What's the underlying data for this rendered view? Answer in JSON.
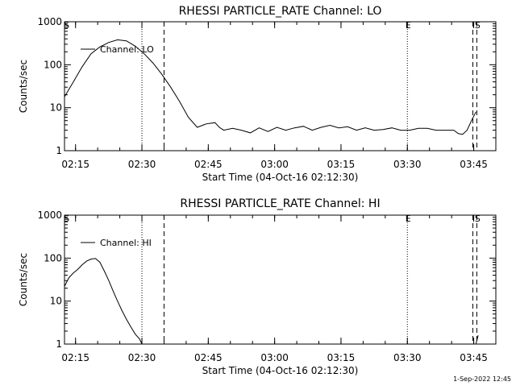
{
  "footer": {
    "timestamp": "1-Sep-2022 12:45"
  },
  "chart_data": [
    {
      "type": "line",
      "title": "RHESSI PARTICLE_RATE Channel: LO",
      "xlabel": "Start Time (04-Oct-16 02:12:30)",
      "ylabel": "Counts/sec",
      "ylim": [
        1,
        1000
      ],
      "yscale": "log",
      "x_unit": "minutes after 02:12:30",
      "xlim": [
        0,
        97.5
      ],
      "x_ticks": [
        "02:15",
        "02:30",
        "02:45",
        "03:00",
        "03:15",
        "03:30",
        "03:45"
      ],
      "y_ticks": [
        "1",
        "10",
        "100",
        "1000"
      ],
      "legend": "top-left",
      "grid": false,
      "series": [
        {
          "name": "Channel: LO",
          "x": [
            0,
            2,
            4,
            6,
            8,
            10,
            12,
            14,
            16,
            18,
            20,
            22,
            24,
            26,
            28,
            30,
            32,
            34,
            35,
            36,
            38,
            40,
            42,
            44,
            46,
            48,
            50,
            52,
            54,
            56,
            58,
            60,
            62,
            64,
            66,
            68,
            70,
            72,
            74,
            76,
            78,
            80,
            82,
            84,
            86,
            88,
            89,
            90,
            91,
            92,
            93
          ],
          "y": [
            18,
            40,
            90,
            180,
            260,
            330,
            380,
            360,
            270,
            180,
            110,
            60,
            30,
            14,
            6,
            3.5,
            4.2,
            4.5,
            3.5,
            3,
            3.3,
            3,
            2.6,
            3.4,
            2.8,
            3.5,
            3,
            3.4,
            3.7,
            3,
            3.5,
            3.9,
            3.4,
            3.6,
            3,
            3.4,
            3,
            3.1,
            3.4,
            3,
            3,
            3.3,
            3.3,
            3,
            3,
            3,
            2.5,
            2.4,
            3,
            5,
            8
          ]
        }
      ],
      "markers": [
        {
          "label": "S",
          "x": 0.3,
          "style": "none"
        },
        {
          "label": "",
          "x": 17.5,
          "style": "dotted"
        },
        {
          "label": "",
          "x": 22.5,
          "style": "dashed"
        },
        {
          "label": "E",
          "x": 77.5,
          "style": "dotted"
        },
        {
          "label": "",
          "x": 92.3,
          "style": "dashed"
        },
        {
          "label": "S",
          "x": 93.2,
          "style": "dashed"
        }
      ]
    },
    {
      "type": "line",
      "title": "RHESSI PARTICLE_RATE Channel: HI",
      "xlabel": "Start Time (04-Oct-16 02:12:30)",
      "ylabel": "Counts/sec",
      "ylim": [
        1,
        1000
      ],
      "yscale": "log",
      "x_unit": "minutes after 02:12:30",
      "xlim": [
        0,
        97.5
      ],
      "x_ticks": [
        "02:15",
        "02:30",
        "02:45",
        "03:00",
        "03:15",
        "03:30",
        "03:45"
      ],
      "y_ticks": [
        "1",
        "10",
        "100",
        "1000"
      ],
      "legend": "top-left",
      "grid": false,
      "series": [
        {
          "name": "Channel: HI",
          "x": [
            0,
            1,
            2,
            3,
            4,
            5,
            6,
            7,
            8,
            9,
            10,
            11,
            12,
            13,
            14,
            15,
            16,
            17,
            17.5,
            93,
            93.5
          ],
          "y": [
            22,
            35,
            45,
            55,
            70,
            85,
            95,
            98,
            80,
            50,
            30,
            17,
            10,
            6,
            3.8,
            2.5,
            1.7,
            1.3,
            1.0,
            1.0,
            1.6
          ]
        }
      ],
      "markers": [
        {
          "label": "S",
          "x": 0.3,
          "style": "none"
        },
        {
          "label": "",
          "x": 17.5,
          "style": "dotted"
        },
        {
          "label": "",
          "x": 22.5,
          "style": "dashed"
        },
        {
          "label": "E",
          "x": 77.5,
          "style": "dotted"
        },
        {
          "label": "",
          "x": 92.3,
          "style": "dashed"
        },
        {
          "label": "S",
          "x": 93.2,
          "style": "dashed"
        }
      ]
    }
  ]
}
